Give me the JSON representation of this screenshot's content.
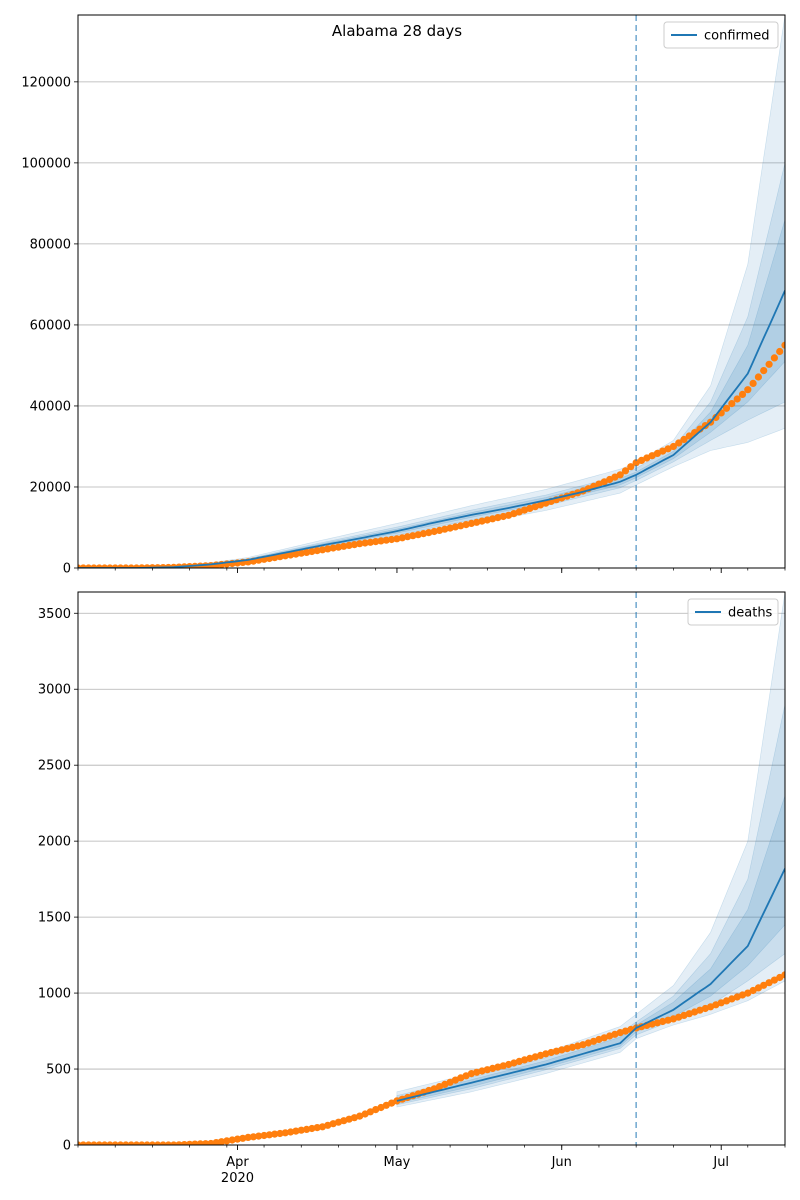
{
  "figure": {
    "title": "Alabama 28 days"
  },
  "colors": {
    "model": "#1f77b4",
    "observed": "#ff7f0e",
    "grid": "#b0b0b0",
    "band": "#1f77b4"
  },
  "chart_data": [
    {
      "type": "line",
      "title": "Alabama 28 days",
      "xlabel": "",
      "ylabel": "",
      "x_range": [
        "2020-03-02",
        "2020-07-13"
      ],
      "ylim": [
        0,
        136500
      ],
      "yticks": [
        0,
        20000,
        40000,
        60000,
        80000,
        100000,
        120000
      ],
      "xtick_labels": [
        "Apr",
        "May",
        "Jun",
        "Jul"
      ],
      "xtick_year": "2020",
      "grid": "horizontal",
      "legend": {
        "position": "top-right",
        "entries": [
          "confirmed"
        ]
      },
      "forecast_start": "2020-06-15",
      "series": [
        {
          "name": "confirmed",
          "kind": "model",
          "x": [
            "2020-03-02",
            "2020-03-13",
            "2020-03-20",
            "2020-03-27",
            "2020-04-03",
            "2020-04-10",
            "2020-04-17",
            "2020-04-24",
            "2020-05-01",
            "2020-05-08",
            "2020-05-15",
            "2020-05-22",
            "2020-05-29",
            "2020-06-05",
            "2020-06-12",
            "2020-06-15",
            "2020-06-22",
            "2020-06-29",
            "2020-07-06",
            "2020-07-13"
          ],
          "values": [
            0,
            0,
            200,
            900,
            2000,
            3800,
            5600,
            7300,
            9100,
            11200,
            13100,
            14800,
            16700,
            18800,
            21300,
            23000,
            27900,
            36000,
            48000,
            68500
          ]
        },
        {
          "name": "confirmed",
          "kind": "observed",
          "x": [
            "2020-03-02",
            "2020-03-13",
            "2020-03-20",
            "2020-03-27",
            "2020-04-03",
            "2020-04-10",
            "2020-04-17",
            "2020-04-24",
            "2020-05-01",
            "2020-05-08",
            "2020-05-15",
            "2020-05-22",
            "2020-05-29",
            "2020-06-05",
            "2020-06-12",
            "2020-06-15",
            "2020-06-22",
            "2020-06-29",
            "2020-07-06",
            "2020-07-13"
          ],
          "values": [
            0,
            0,
            150,
            600,
            1500,
            3000,
            4500,
            6000,
            7200,
            9000,
            11000,
            13000,
            16000,
            19000,
            23000,
            26000,
            30000,
            36000,
            44000,
            55000
          ]
        }
      ],
      "band_series": [
        {
          "name": "confirmed-interval-outer",
          "x": [
            "2020-03-20",
            "2020-03-27",
            "2020-04-03",
            "2020-04-17",
            "2020-05-01",
            "2020-05-15",
            "2020-05-29",
            "2020-06-12",
            "2020-06-15",
            "2020-06-22",
            "2020-06-29",
            "2020-07-06",
            "2020-07-13"
          ],
          "lower": [
            0,
            500,
            1400,
            4300,
            7200,
            10800,
            14200,
            18500,
            20500,
            25000,
            29000,
            31000,
            34500
          ],
          "upper": [
            400,
            1300,
            2600,
            6900,
            11000,
            15400,
            19400,
            24400,
            26000,
            31500,
            45000,
            75000,
            136500
          ]
        },
        {
          "name": "confirmed-interval-mid",
          "x": [
            "2020-03-20",
            "2020-03-27",
            "2020-04-03",
            "2020-04-17",
            "2020-05-01",
            "2020-05-15",
            "2020-05-29",
            "2020-06-12",
            "2020-06-15",
            "2020-06-22",
            "2020-06-29",
            "2020-07-06",
            "2020-07-13"
          ],
          "lower": [
            100,
            700,
            1700,
            4900,
            8100,
            11900,
            15400,
            19800,
            21600,
            26200,
            31500,
            36500,
            41000
          ],
          "upper": [
            300,
            1100,
            2300,
            6300,
            10100,
            14300,
            18000,
            22800,
            24600,
            29800,
            41000,
            62000,
            100000
          ]
        },
        {
          "name": "confirmed-interval-inner",
          "x": [
            "2020-03-20",
            "2020-03-27",
            "2020-04-03",
            "2020-04-17",
            "2020-05-01",
            "2020-05-15",
            "2020-05-29",
            "2020-06-12",
            "2020-06-15",
            "2020-06-22",
            "2020-06-29",
            "2020-07-06",
            "2020-07-13"
          ],
          "lower": [
            150,
            800,
            1850,
            5200,
            8600,
            12500,
            16000,
            20500,
            22300,
            27000,
            33500,
            41000,
            51000
          ],
          "upper": [
            250,
            1000,
            2150,
            6000,
            9600,
            13700,
            17400,
            22100,
            23700,
            28800,
            38500,
            55000,
            86000
          ]
        }
      ]
    },
    {
      "type": "line",
      "title": "",
      "xlabel": "",
      "ylabel": "",
      "x_range": [
        "2020-03-02",
        "2020-07-13"
      ],
      "ylim": [
        0,
        3640
      ],
      "yticks": [
        0,
        500,
        1000,
        1500,
        2000,
        2500,
        3000,
        3500
      ],
      "xtick_labels": [
        "Apr",
        "May",
        "Jun",
        "Jul"
      ],
      "xtick_year": "2020",
      "grid": "horizontal",
      "legend": {
        "position": "top-right",
        "entries": [
          "deaths"
        ]
      },
      "forecast_start": "2020-06-15",
      "series": [
        {
          "name": "deaths",
          "kind": "model",
          "x": [
            "2020-05-01",
            "2020-05-08",
            "2020-05-15",
            "2020-05-22",
            "2020-05-29",
            "2020-06-05",
            "2020-06-12",
            "2020-06-15",
            "2020-06-22",
            "2020-06-29",
            "2020-07-06",
            "2020-07-13"
          ],
          "values": [
            290,
            350,
            410,
            470,
            530,
            600,
            670,
            770,
            890,
            1060,
            1310,
            1820
          ]
        },
        {
          "name": "deaths",
          "kind": "observed",
          "x": [
            "2020-03-02",
            "2020-03-13",
            "2020-03-20",
            "2020-03-27",
            "2020-04-03",
            "2020-04-10",
            "2020-04-17",
            "2020-04-24",
            "2020-05-01",
            "2020-05-08",
            "2020-05-15",
            "2020-05-22",
            "2020-05-29",
            "2020-06-05",
            "2020-06-12",
            "2020-06-15",
            "2020-06-22",
            "2020-06-29",
            "2020-07-06",
            "2020-07-13"
          ],
          "values": [
            0,
            0,
            0,
            10,
            50,
            80,
            120,
            190,
            290,
            370,
            470,
            530,
            600,
            660,
            740,
            770,
            830,
            910,
            1000,
            1120
          ]
        }
      ],
      "band_series": [
        {
          "name": "deaths-interval-outer",
          "x": [
            "2020-05-01",
            "2020-05-15",
            "2020-05-29",
            "2020-06-12",
            "2020-06-15",
            "2020-06-22",
            "2020-06-29",
            "2020-07-06",
            "2020-07-13"
          ],
          "lower": [
            250,
            350,
            470,
            610,
            700,
            790,
            860,
            950,
            1080
          ],
          "upper": [
            350,
            470,
            610,
            780,
            860,
            1050,
            1400,
            2000,
            3640
          ]
        },
        {
          "name": "deaths-interval-mid",
          "x": [
            "2020-05-01",
            "2020-05-15",
            "2020-05-29",
            "2020-06-12",
            "2020-06-15",
            "2020-06-22",
            "2020-06-29",
            "2020-07-06",
            "2020-07-13"
          ],
          "lower": [
            265,
            370,
            495,
            635,
            725,
            820,
            920,
            1080,
            1260
          ],
          "upper": [
            325,
            445,
            575,
            735,
            810,
            980,
            1260,
            1750,
            2900
          ]
        },
        {
          "name": "deaths-interval-inner",
          "x": [
            "2020-05-01",
            "2020-05-15",
            "2020-05-29",
            "2020-06-12",
            "2020-06-15",
            "2020-06-22",
            "2020-06-29",
            "2020-07-06",
            "2020-07-13"
          ],
          "lower": [
            275,
            385,
            510,
            650,
            745,
            845,
            980,
            1180,
            1450
          ],
          "upper": [
            310,
            430,
            555,
            710,
            790,
            940,
            1160,
            1550,
            2300
          ]
        }
      ]
    }
  ]
}
